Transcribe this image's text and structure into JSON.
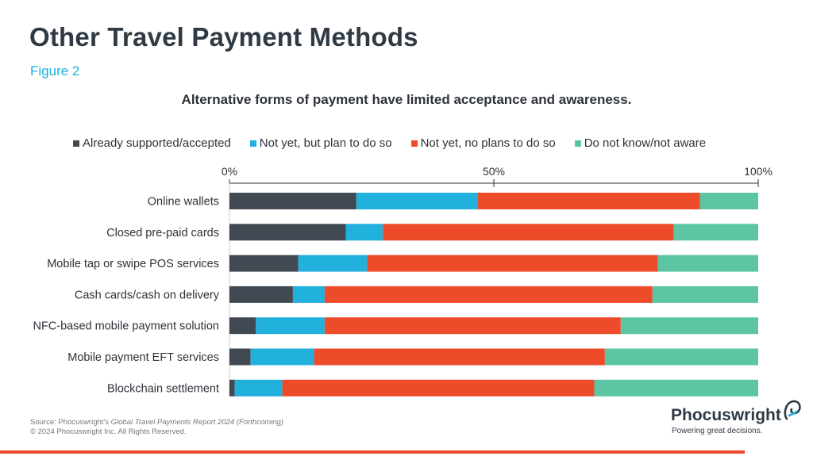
{
  "header": {
    "title": "Other Travel Payment Methods",
    "figure_label": "Figure 2"
  },
  "colors": {
    "already": "#414a53",
    "plan": "#22b0dd",
    "no_plans": "#ee4b2b",
    "unaware": "#5cc6a4",
    "bottom_rule": "#ee4b2b",
    "figure_label": "#1ab0dc"
  },
  "chart_data": {
    "type": "bar",
    "orientation": "horizontal",
    "stacked": true,
    "title": "Alternative forms of payment have limited acceptance and awareness.",
    "categories": [
      "Online wallets",
      "Closed pre-paid cards",
      "Mobile tap or swipe POS services",
      "Cash cards/cash on delivery",
      "NFC-based mobile payment solution",
      "Mobile payment EFT services",
      "Blockchain settlement"
    ],
    "series": [
      {
        "name": "Already supported/accepted",
        "color": "#414a53",
        "values": [
          24,
          22,
          13,
          12,
          5,
          4,
          1
        ]
      },
      {
        "name": "Not yet, but plan to do so",
        "color": "#22b0dd",
        "values": [
          23,
          7,
          13,
          6,
          13,
          12,
          9
        ]
      },
      {
        "name": "Not yet, no plans to do so",
        "color": "#ee4b2b",
        "values": [
          42,
          55,
          55,
          62,
          56,
          55,
          59
        ]
      },
      {
        "name": "Do not know/not aware",
        "color": "#5cc6a4",
        "values": [
          11,
          16,
          19,
          20,
          26,
          29,
          31
        ]
      }
    ],
    "x_ticks": [
      "0%",
      "50%",
      "100%"
    ],
    "xlim": [
      0,
      100
    ],
    "axis_position": "top",
    "legend_position": "top",
    "grid": false
  },
  "footer": {
    "source_prefix": "Source: Phocuswright's ",
    "source_report": "Global Travel Payments Report 2024 (Forthcoming)",
    "copyright": "© 2024 Phocuswright Inc. All Rights Reserved.",
    "brand_name": "Phocuswright",
    "brand_tagline": "Powering great decisions."
  }
}
